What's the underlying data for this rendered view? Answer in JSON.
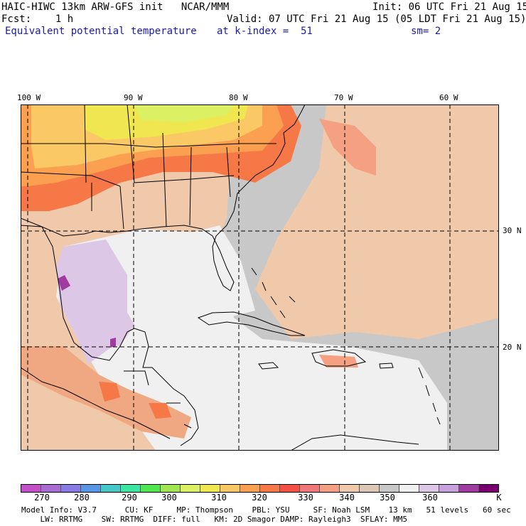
{
  "header": {
    "model_title": "HAIC-HIWC 13km ARW-GFS init   NCAR/MMM",
    "init": "Init: 06 UTC Fri 21 Aug 15",
    "fcst": "Fcst:    1 h",
    "valid": "Valid: 07 UTC Fri 21 Aug 15 (05 LDT Fri 21 Aug 15)",
    "field": "Equivalent potential temperature",
    "level": "at k-index =  51",
    "smooth": "sm= 2"
  },
  "map": {
    "lon_labels": [
      "100 W",
      "90 W",
      "80 W",
      "70 W",
      "60 W"
    ],
    "lat_labels": [
      "30 N",
      "20 N"
    ]
  },
  "colorbar": {
    "unit": "K",
    "labels": [
      "270",
      "280",
      "290",
      "300",
      "310",
      "320",
      "330",
      "340",
      "350",
      "360"
    ],
    "colors": [
      "#c350c8",
      "#a86cd2",
      "#8a7ae6",
      "#5a96e6",
      "#46c8c8",
      "#3ce6a0",
      "#50e650",
      "#a0e650",
      "#dcf064",
      "#f0e650",
      "#fac864",
      "#faa050",
      "#f57846",
      "#f55046",
      "#f07878",
      "#f5a082",
      "#f0c8aa",
      "#dcc8b4",
      "#c8c8c8",
      "#f0f0f0",
      "#dcc8e6",
      "#c8a0dc",
      "#a03ca0",
      "#78006e"
    ]
  },
  "footer": {
    "line1": "Model Info: V3.7      CU: KF     MP: Thompson    PBL: YSU     SF: Noah LSM    13 km   51 levels   60 sec",
    "line2": "    LW: RRTMG    SW: RRTMG  DIFF: full   KM: 2D Smagor DAMP: Rayleigh3  SFLAY: MM5"
  }
}
